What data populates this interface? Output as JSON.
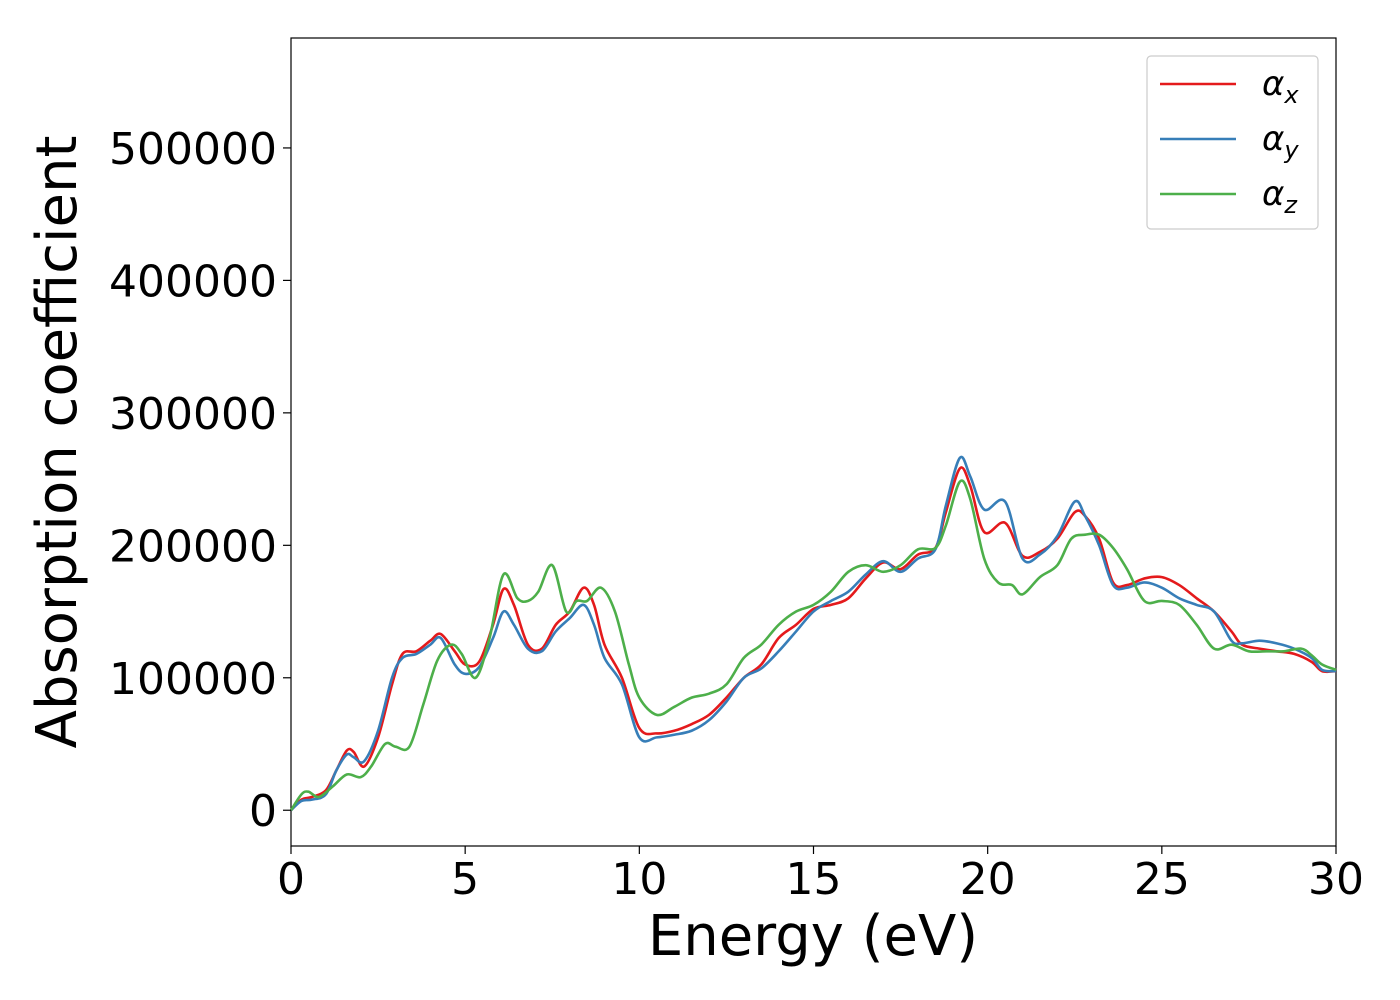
{
  "chart_data": {
    "type": "line",
    "title": "",
    "xlabel": "Energy (eV)",
    "ylabel": "Absorption coefficient",
    "xlim": [
      0,
      30
    ],
    "ylim": [
      -27000,
      583000
    ],
    "xticks": [
      0,
      5,
      10,
      15,
      20,
      25,
      30
    ],
    "yticks": [
      0,
      100000,
      200000,
      300000,
      400000,
      500000
    ],
    "xtick_labels": [
      "0",
      "5",
      "10",
      "15",
      "20",
      "25",
      "30"
    ],
    "ytick_labels": [
      "0",
      "100000",
      "200000",
      "300000",
      "400000",
      "500000"
    ],
    "grid": false,
    "legend_position": "top-right",
    "series": [
      {
        "name": "α_x",
        "label_main": "α",
        "label_sub": "x",
        "color": "#e41a1c",
        "points": [
          [
            0,
            0
          ],
          [
            0.3,
            8000
          ],
          [
            0.6,
            10000
          ],
          [
            1.0,
            15000
          ],
          [
            1.3,
            30000
          ],
          [
            1.6,
            45000
          ],
          [
            1.8,
            44000
          ],
          [
            2.1,
            33000
          ],
          [
            2.5,
            55000
          ],
          [
            2.9,
            95000
          ],
          [
            3.2,
            118000
          ],
          [
            3.6,
            120000
          ],
          [
            4.0,
            128000
          ],
          [
            4.3,
            133000
          ],
          [
            4.7,
            120000
          ],
          [
            5.0,
            110000
          ],
          [
            5.4,
            112000
          ],
          [
            5.8,
            140000
          ],
          [
            6.1,
            167000
          ],
          [
            6.4,
            155000
          ],
          [
            6.8,
            125000
          ],
          [
            7.2,
            122000
          ],
          [
            7.6,
            140000
          ],
          [
            8.0,
            150000
          ],
          [
            8.4,
            168000
          ],
          [
            8.7,
            155000
          ],
          [
            9.0,
            125000
          ],
          [
            9.5,
            100000
          ],
          [
            10.0,
            62000
          ],
          [
            10.5,
            58000
          ],
          [
            11.0,
            60000
          ],
          [
            11.5,
            65000
          ],
          [
            12.0,
            72000
          ],
          [
            12.5,
            85000
          ],
          [
            13.0,
            100000
          ],
          [
            13.5,
            110000
          ],
          [
            14.0,
            130000
          ],
          [
            14.5,
            140000
          ],
          [
            15.0,
            152000
          ],
          [
            15.5,
            155000
          ],
          [
            16.0,
            160000
          ],
          [
            16.5,
            175000
          ],
          [
            17.0,
            187000
          ],
          [
            17.5,
            182000
          ],
          [
            18.0,
            193000
          ],
          [
            18.5,
            198000
          ],
          [
            18.8,
            225000
          ],
          [
            19.2,
            258000
          ],
          [
            19.5,
            245000
          ],
          [
            19.9,
            210000
          ],
          [
            20.5,
            217000
          ],
          [
            21.0,
            192000
          ],
          [
            21.5,
            195000
          ],
          [
            22.0,
            205000
          ],
          [
            22.5,
            225000
          ],
          [
            22.8,
            222000
          ],
          [
            23.2,
            205000
          ],
          [
            23.6,
            172000
          ],
          [
            24.0,
            170000
          ],
          [
            24.5,
            175000
          ],
          [
            25.0,
            176000
          ],
          [
            25.5,
            170000
          ],
          [
            26.0,
            160000
          ],
          [
            26.5,
            150000
          ],
          [
            27.0,
            135000
          ],
          [
            27.3,
            125000
          ],
          [
            27.8,
            122000
          ],
          [
            28.3,
            120000
          ],
          [
            28.8,
            118000
          ],
          [
            29.3,
            112000
          ],
          [
            29.6,
            105000
          ],
          [
            30.0,
            105000
          ]
        ]
      },
      {
        "name": "α_y",
        "label_main": "α",
        "label_sub": "y",
        "color": "#377eb8",
        "points": [
          [
            0,
            0
          ],
          [
            0.3,
            7000
          ],
          [
            0.6,
            8000
          ],
          [
            1.0,
            12000
          ],
          [
            1.3,
            30000
          ],
          [
            1.6,
            42000
          ],
          [
            1.8,
            40000
          ],
          [
            2.1,
            37000
          ],
          [
            2.5,
            60000
          ],
          [
            2.9,
            100000
          ],
          [
            3.2,
            115000
          ],
          [
            3.6,
            118000
          ],
          [
            4.0,
            125000
          ],
          [
            4.3,
            130000
          ],
          [
            4.7,
            110000
          ],
          [
            5.0,
            103000
          ],
          [
            5.4,
            108000
          ],
          [
            5.8,
            130000
          ],
          [
            6.1,
            150000
          ],
          [
            6.4,
            140000
          ],
          [
            6.8,
            122000
          ],
          [
            7.2,
            120000
          ],
          [
            7.6,
            135000
          ],
          [
            8.0,
            145000
          ],
          [
            8.4,
            155000
          ],
          [
            8.7,
            140000
          ],
          [
            9.0,
            115000
          ],
          [
            9.5,
            95000
          ],
          [
            10.0,
            55000
          ],
          [
            10.5,
            55000
          ],
          [
            11.0,
            57000
          ],
          [
            11.5,
            60000
          ],
          [
            12.0,
            68000
          ],
          [
            12.5,
            82000
          ],
          [
            13.0,
            100000
          ],
          [
            13.5,
            107000
          ],
          [
            14.0,
            120000
          ],
          [
            14.5,
            135000
          ],
          [
            15.0,
            150000
          ],
          [
            15.5,
            158000
          ],
          [
            16.0,
            165000
          ],
          [
            16.5,
            178000
          ],
          [
            17.0,
            188000
          ],
          [
            17.5,
            180000
          ],
          [
            18.0,
            190000
          ],
          [
            18.5,
            197000
          ],
          [
            18.8,
            230000
          ],
          [
            19.2,
            266000
          ],
          [
            19.5,
            252000
          ],
          [
            19.9,
            227000
          ],
          [
            20.5,
            233000
          ],
          [
            21.0,
            190000
          ],
          [
            21.5,
            193000
          ],
          [
            22.0,
            207000
          ],
          [
            22.5,
            233000
          ],
          [
            22.8,
            222000
          ],
          [
            23.2,
            200000
          ],
          [
            23.6,
            170000
          ],
          [
            24.0,
            168000
          ],
          [
            24.5,
            172000
          ],
          [
            25.0,
            168000
          ],
          [
            25.5,
            160000
          ],
          [
            26.0,
            155000
          ],
          [
            26.5,
            150000
          ],
          [
            27.0,
            128000
          ],
          [
            27.3,
            126000
          ],
          [
            27.8,
            128000
          ],
          [
            28.3,
            126000
          ],
          [
            28.8,
            122000
          ],
          [
            29.3,
            115000
          ],
          [
            29.6,
            106000
          ],
          [
            30.0,
            105000
          ]
        ]
      },
      {
        "name": "α_z",
        "label_main": "α",
        "label_sub": "z",
        "color": "#4daf4a",
        "points": [
          [
            0,
            0
          ],
          [
            0.3,
            12000
          ],
          [
            0.5,
            14000
          ],
          [
            0.8,
            10000
          ],
          [
            1.2,
            18000
          ],
          [
            1.6,
            27000
          ],
          [
            2.0,
            25000
          ],
          [
            2.3,
            33000
          ],
          [
            2.7,
            50000
          ],
          [
            3.0,
            48000
          ],
          [
            3.4,
            48000
          ],
          [
            3.8,
            80000
          ],
          [
            4.2,
            113000
          ],
          [
            4.6,
            125000
          ],
          [
            4.9,
            118000
          ],
          [
            5.3,
            100000
          ],
          [
            5.7,
            130000
          ],
          [
            6.1,
            178000
          ],
          [
            6.5,
            160000
          ],
          [
            6.8,
            158000
          ],
          [
            7.1,
            165000
          ],
          [
            7.5,
            185000
          ],
          [
            7.9,
            150000
          ],
          [
            8.2,
            158000
          ],
          [
            8.5,
            158000
          ],
          [
            8.9,
            168000
          ],
          [
            9.3,
            150000
          ],
          [
            9.7,
            110000
          ],
          [
            10.0,
            85000
          ],
          [
            10.5,
            72000
          ],
          [
            11.0,
            78000
          ],
          [
            11.5,
            85000
          ],
          [
            12.0,
            88000
          ],
          [
            12.5,
            95000
          ],
          [
            13.0,
            115000
          ],
          [
            13.5,
            125000
          ],
          [
            14.0,
            140000
          ],
          [
            14.5,
            150000
          ],
          [
            15.0,
            155000
          ],
          [
            15.5,
            165000
          ],
          [
            16.0,
            180000
          ],
          [
            16.5,
            185000
          ],
          [
            17.0,
            180000
          ],
          [
            17.5,
            185000
          ],
          [
            18.0,
            197000
          ],
          [
            18.5,
            198000
          ],
          [
            18.8,
            215000
          ],
          [
            19.2,
            248000
          ],
          [
            19.5,
            235000
          ],
          [
            19.9,
            190000
          ],
          [
            20.3,
            172000
          ],
          [
            20.7,
            170000
          ],
          [
            21.0,
            163000
          ],
          [
            21.5,
            176000
          ],
          [
            22.0,
            185000
          ],
          [
            22.4,
            205000
          ],
          [
            22.8,
            208000
          ],
          [
            23.2,
            208000
          ],
          [
            23.6,
            198000
          ],
          [
            24.0,
            182000
          ],
          [
            24.5,
            158000
          ],
          [
            25.0,
            158000
          ],
          [
            25.5,
            155000
          ],
          [
            26.0,
            140000
          ],
          [
            26.5,
            122000
          ],
          [
            27.0,
            125000
          ],
          [
            27.5,
            120000
          ],
          [
            28.0,
            120000
          ],
          [
            28.5,
            120000
          ],
          [
            29.0,
            122000
          ],
          [
            29.3,
            117000
          ],
          [
            29.6,
            110000
          ],
          [
            30.0,
            106000
          ]
        ]
      }
    ]
  }
}
